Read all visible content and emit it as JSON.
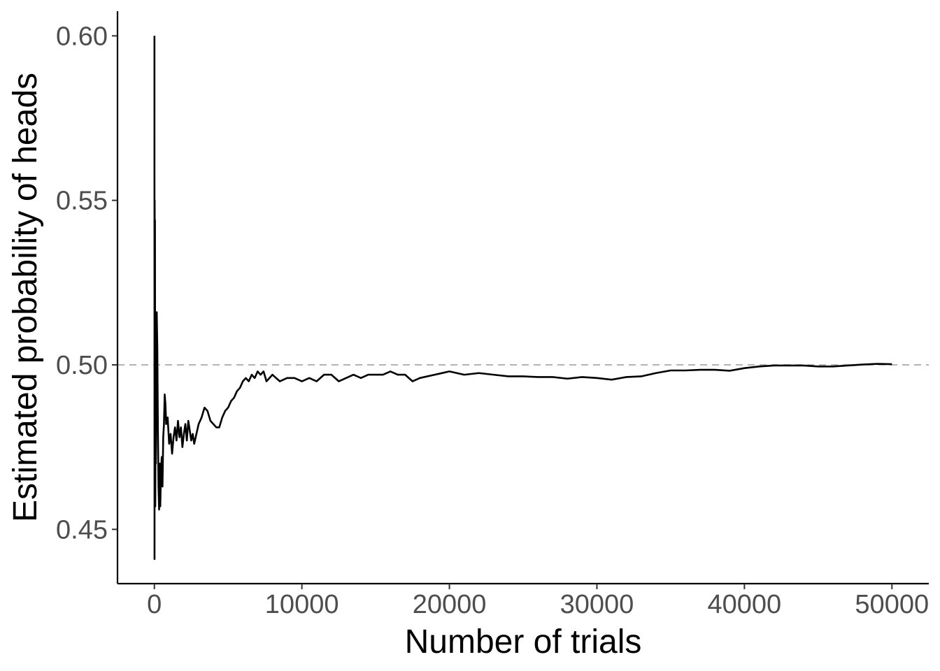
{
  "chart_data": {
    "type": "line",
    "title": "",
    "xlabel": "Number of trials",
    "ylabel": "Estimated probability of heads",
    "xlim": [
      -2500,
      52500
    ],
    "ylim": [
      0.4335,
      0.6075
    ],
    "x_ticks": [
      0,
      10000,
      20000,
      30000,
      40000,
      50000
    ],
    "x_tick_labels": [
      "0",
      "10000",
      "20000",
      "30000",
      "40000",
      "50000"
    ],
    "y_ticks": [
      0.45,
      0.5,
      0.55,
      0.6
    ],
    "y_tick_labels": [
      "0.45",
      "0.50",
      "0.55",
      "0.60"
    ],
    "grid": false,
    "reference_line": {
      "y": 0.5,
      "style": "dashed",
      "color": "#b3b3b3"
    },
    "series": [
      {
        "name": "Estimated probability of heads",
        "color": "#000000",
        "x": [
          5,
          10,
          20,
          30,
          40,
          60,
          80,
          100,
          130,
          160,
          200,
          240,
          280,
          320,
          360,
          400,
          450,
          500,
          550,
          600,
          650,
          700,
          750,
          800,
          900,
          1000,
          1100,
          1200,
          1300,
          1400,
          1500,
          1600,
          1700,
          1800,
          1900,
          2000,
          2100,
          2200,
          2300,
          2400,
          2500,
          2600,
          2700,
          2800,
          2900,
          3000,
          3200,
          3400,
          3600,
          3800,
          4000,
          4200,
          4400,
          4600,
          4800,
          5000,
          5200,
          5400,
          5600,
          5800,
          6000,
          6200,
          6400,
          6600,
          6800,
          7000,
          7200,
          7400,
          7600,
          7800,
          8000,
          8500,
          9000,
          9500,
          10000,
          10500,
          11000,
          11500,
          12000,
          12500,
          13000,
          13500,
          14000,
          14500,
          15000,
          15500,
          16000,
          16500,
          17000,
          17500,
          18000,
          19000,
          20000,
          21000,
          22000,
          23000,
          24000,
          25000,
          26000,
          27000,
          28000,
          29000,
          30000,
          31000,
          32000,
          33000,
          34000,
          35000,
          36000,
          37000,
          38000,
          39000,
          40000,
          41000,
          42000,
          43000,
          44000,
          45000,
          46000,
          47000,
          48000,
          49000,
          50000
        ],
        "y": [
          0.6,
          0.441,
          0.55,
          0.5,
          0.544,
          0.457,
          0.48,
          0.47,
          0.49,
          0.516,
          0.505,
          0.48,
          0.463,
          0.456,
          0.47,
          0.457,
          0.468,
          0.472,
          0.463,
          0.478,
          0.482,
          0.491,
          0.488,
          0.482,
          0.484,
          0.476,
          0.479,
          0.473,
          0.478,
          0.481,
          0.477,
          0.483,
          0.478,
          0.481,
          0.475,
          0.479,
          0.482,
          0.477,
          0.483,
          0.48,
          0.477,
          0.479,
          0.476,
          0.478,
          0.48,
          0.482,
          0.484,
          0.487,
          0.486,
          0.483,
          0.482,
          0.481,
          0.481,
          0.484,
          0.486,
          0.487,
          0.489,
          0.49,
          0.492,
          0.493,
          0.495,
          0.496,
          0.495,
          0.497,
          0.496,
          0.498,
          0.497,
          0.498,
          0.495,
          0.496,
          0.497,
          0.495,
          0.496,
          0.496,
          0.495,
          0.496,
          0.495,
          0.497,
          0.497,
          0.495,
          0.496,
          0.497,
          0.496,
          0.497,
          0.497,
          0.497,
          0.498,
          0.497,
          0.497,
          0.495,
          0.496,
          0.497,
          0.498,
          0.497,
          0.4975,
          0.497,
          0.4965,
          0.4965,
          0.4963,
          0.4963,
          0.4958,
          0.4963,
          0.496,
          0.4955,
          0.4963,
          0.4965,
          0.4975,
          0.4983,
          0.4983,
          0.4985,
          0.4985,
          0.4982,
          0.499,
          0.4995,
          0.4998,
          0.4998,
          0.4998,
          0.4995,
          0.4995,
          0.4998,
          0.5001,
          0.5003,
          0.5002
        ]
      }
    ]
  }
}
